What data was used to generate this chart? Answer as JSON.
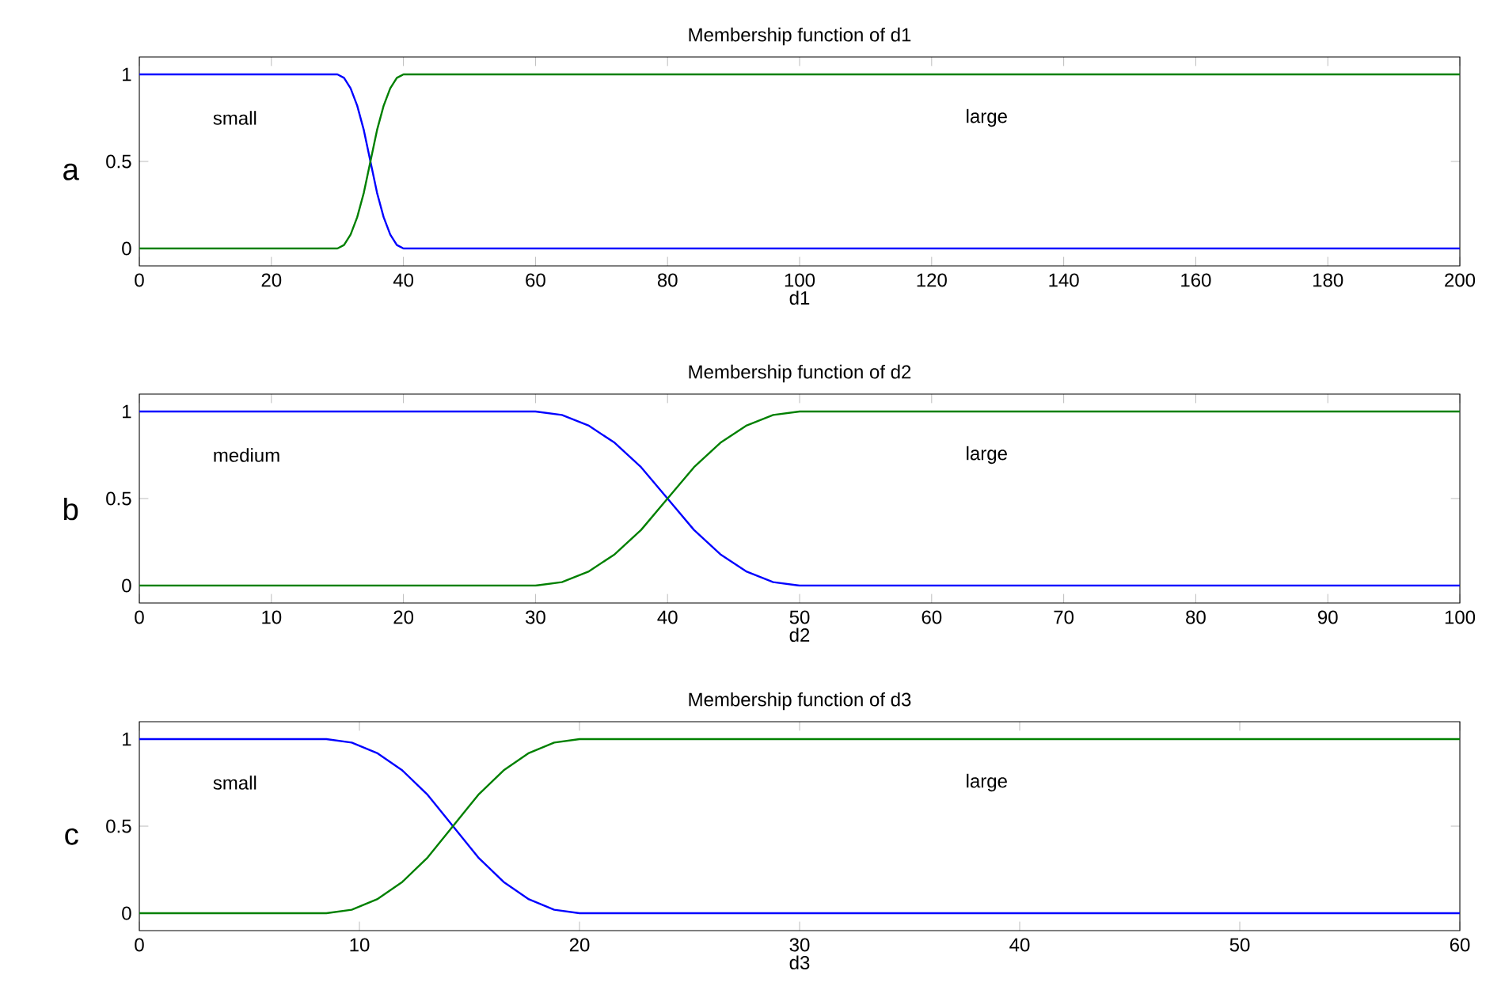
{
  "chart_data": [
    {
      "type": "line",
      "title": "Membership function of d1",
      "xlabel": "d1",
      "annotations": [
        "a"
      ],
      "xlim": [
        0,
        200
      ],
      "ylim": [
        -0.1,
        1.1
      ],
      "xticks": [
        0,
        20,
        40,
        60,
        80,
        100,
        120,
        140,
        160,
        180,
        200
      ],
      "yticks": [
        0,
        0.5,
        1
      ],
      "legend": false,
      "grid": false,
      "x": [
        0,
        30,
        31,
        32,
        33,
        34,
        35,
        36,
        37,
        38,
        39,
        40,
        200
      ],
      "series": [
        {
          "name": "small",
          "color": "#0000ff",
          "values": [
            1,
            1,
            0.98,
            0.92,
            0.82,
            0.68,
            0.5,
            0.32,
            0.18,
            0.08,
            0.02,
            0,
            0
          ]
        },
        {
          "name": "large",
          "color": "#008000",
          "values": [
            0,
            0,
            0.02,
            0.08,
            0.18,
            0.32,
            0.5,
            0.68,
            0.82,
            0.92,
            0.98,
            1,
            1
          ]
        }
      ]
    },
    {
      "type": "line",
      "title": "Membership function of d2",
      "xlabel": "d2",
      "annotations": [
        "b"
      ],
      "xlim": [
        0,
        100
      ],
      "ylim": [
        -0.1,
        1.1
      ],
      "xticks": [
        0,
        10,
        20,
        30,
        40,
        50,
        60,
        70,
        80,
        90,
        100
      ],
      "yticks": [
        0,
        0.5,
        1
      ],
      "legend": false,
      "grid": false,
      "x": [
        0,
        30,
        32,
        34,
        36,
        38,
        40,
        42,
        44,
        46,
        48,
        50,
        100
      ],
      "series": [
        {
          "name": "medium",
          "color": "#0000ff",
          "values": [
            1,
            1,
            0.98,
            0.92,
            0.82,
            0.68,
            0.5,
            0.32,
            0.18,
            0.08,
            0.02,
            0,
            0
          ]
        },
        {
          "name": "large",
          "color": "#008000",
          "values": [
            0,
            0,
            0.02,
            0.08,
            0.18,
            0.32,
            0.5,
            0.68,
            0.82,
            0.92,
            0.98,
            1,
            1
          ]
        }
      ]
    },
    {
      "type": "line",
      "title": "Membership function of d3",
      "xlabel": "d3",
      "annotations": [
        "c"
      ],
      "xlim": [
        0,
        60
      ],
      "ylim": [
        -0.1,
        1.1
      ],
      "xticks": [
        0,
        10,
        20,
        30,
        40,
        50,
        60
      ],
      "yticks": [
        0,
        0.5,
        1
      ],
      "legend": false,
      "grid": false,
      "x": [
        0,
        8.5,
        9.65,
        10.8,
        11.95,
        13.1,
        14.25,
        15.4,
        16.55,
        17.7,
        18.85,
        20,
        60
      ],
      "series": [
        {
          "name": "small",
          "color": "#0000ff",
          "values": [
            1,
            1,
            0.98,
            0.92,
            0.82,
            0.68,
            0.5,
            0.32,
            0.18,
            0.08,
            0.02,
            0,
            0
          ]
        },
        {
          "name": "large",
          "color": "#008000",
          "values": [
            0,
            0,
            0.02,
            0.08,
            0.18,
            0.32,
            0.5,
            0.68,
            0.82,
            0.92,
            0.98,
            1,
            1
          ]
        }
      ]
    }
  ]
}
